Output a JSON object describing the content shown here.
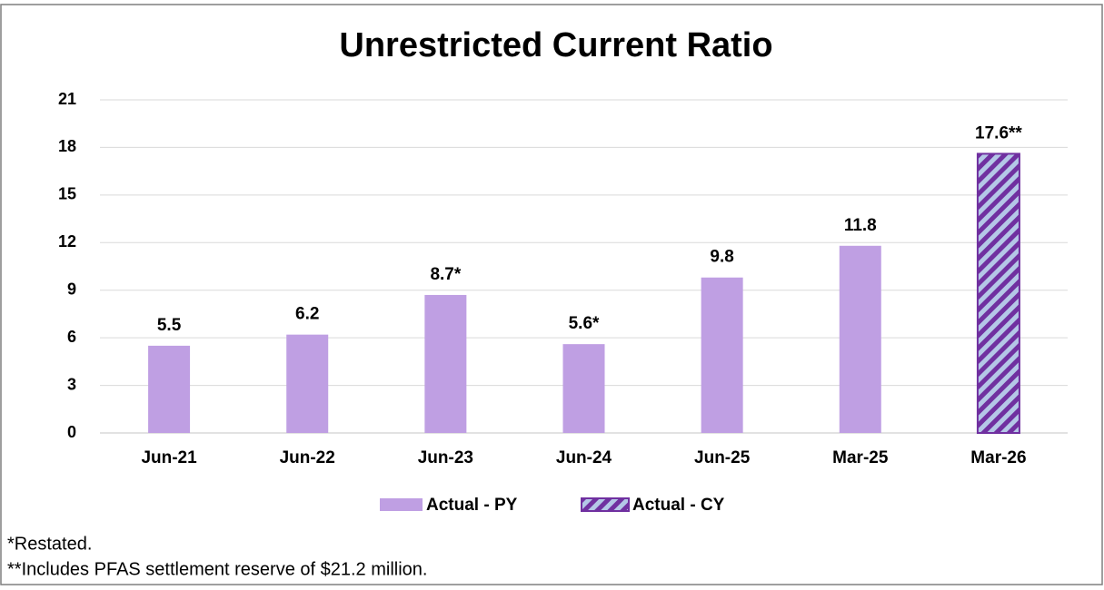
{
  "chart_data": {
    "type": "bar",
    "title": "Unrestricted Current Ratio",
    "categories": [
      "Jun-21",
      "Jun-22",
      "Jun-23",
      "Jun-24",
      "Jun-25",
      "Mar-25",
      "Mar-26"
    ],
    "series": [
      {
        "name": "Actual - PY",
        "color": "#bf9fe3",
        "values": [
          5.5,
          6.2,
          8.7,
          5.6,
          9.8,
          11.8,
          null
        ],
        "value_labels": [
          "5.5",
          "6.2",
          "8.7*",
          "5.6*",
          "9.8",
          "11.8",
          null
        ]
      },
      {
        "name": "Actual - CY",
        "color": "#7030a0",
        "pattern": "hatch",
        "pattern_background": "#b4c7e7",
        "values": [
          null,
          null,
          null,
          null,
          null,
          null,
          17.6
        ],
        "value_labels": [
          null,
          null,
          null,
          null,
          null,
          null,
          "17.6**"
        ]
      }
    ],
    "ylim": [
      0,
      21
    ],
    "yticks": [
      0,
      3,
      6,
      9,
      12,
      15,
      18,
      21
    ],
    "grid": true,
    "legend": "bottom",
    "notes": [
      "*Restated.",
      "**Includes PFAS settlement reserve of $21.2 million."
    ]
  }
}
